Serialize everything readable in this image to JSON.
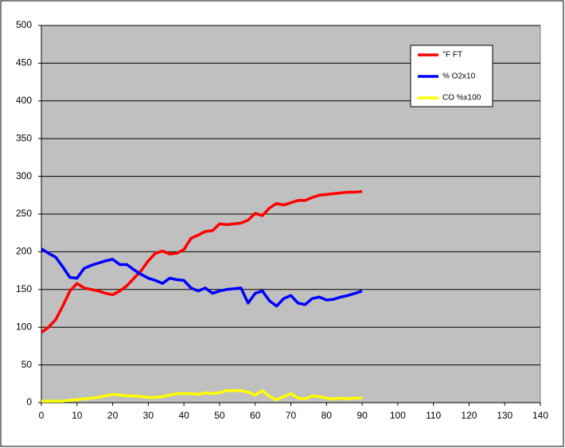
{
  "chart_data": {
    "type": "line",
    "x": [
      0,
      2,
      4,
      6,
      8,
      10,
      12,
      14,
      16,
      18,
      20,
      22,
      24,
      26,
      28,
      30,
      32,
      34,
      36,
      38,
      40,
      42,
      44,
      46,
      48,
      50,
      52,
      54,
      56,
      58,
      60,
      62,
      64,
      66,
      68,
      70,
      72,
      74,
      76,
      78,
      80,
      82,
      84,
      86,
      88,
      90
    ],
    "series": [
      {
        "name": "°F FT",
        "color": "#ff0000",
        "values": [
          93,
          100,
          110,
          128,
          148,
          158,
          152,
          150,
          148,
          145,
          143,
          148,
          155,
          165,
          175,
          188,
          198,
          201,
          197,
          198,
          203,
          218,
          222,
          227,
          228,
          237,
          236,
          237,
          238,
          242,
          251,
          248,
          258,
          264,
          262,
          265,
          268,
          268,
          272,
          275,
          276,
          277,
          278,
          279,
          279,
          280
        ]
      },
      {
        "name": "% O2x10",
        "color": "#0000ff",
        "values": [
          204,
          198,
          193,
          180,
          166,
          165,
          178,
          182,
          185,
          188,
          190,
          183,
          183,
          176,
          170,
          165,
          162,
          158,
          165,
          163,
          162,
          152,
          148,
          152,
          145,
          148,
          150,
          151,
          152,
          132,
          145,
          148,
          135,
          128,
          138,
          142,
          132,
          130,
          138,
          140,
          136,
          137,
          140,
          142,
          145,
          148
        ]
      },
      {
        "name": "CO %x100",
        "color": "#ffff00",
        "values": [
          2,
          2,
          2,
          2,
          3,
          4,
          5,
          6,
          7,
          9,
          11,
          10,
          9,
          9,
          8,
          7,
          7,
          8,
          10,
          12,
          12,
          12,
          11,
          13,
          12,
          13,
          16,
          16,
          16,
          14,
          10,
          16,
          8,
          4,
          8,
          12,
          6,
          5,
          9,
          8,
          6,
          5,
          6,
          5,
          6,
          6
        ]
      }
    ],
    "xlim": [
      0,
      140
    ],
    "xticks": [
      0,
      10,
      20,
      30,
      40,
      50,
      60,
      70,
      80,
      90,
      100,
      110,
      120,
      130,
      140
    ],
    "ylim": [
      0,
      500
    ],
    "yticks": [
      0,
      50,
      100,
      150,
      200,
      250,
      300,
      350,
      400,
      450,
      500
    ],
    "grid": true,
    "legend": "top-right",
    "plot_background": "#c0c0c0"
  }
}
